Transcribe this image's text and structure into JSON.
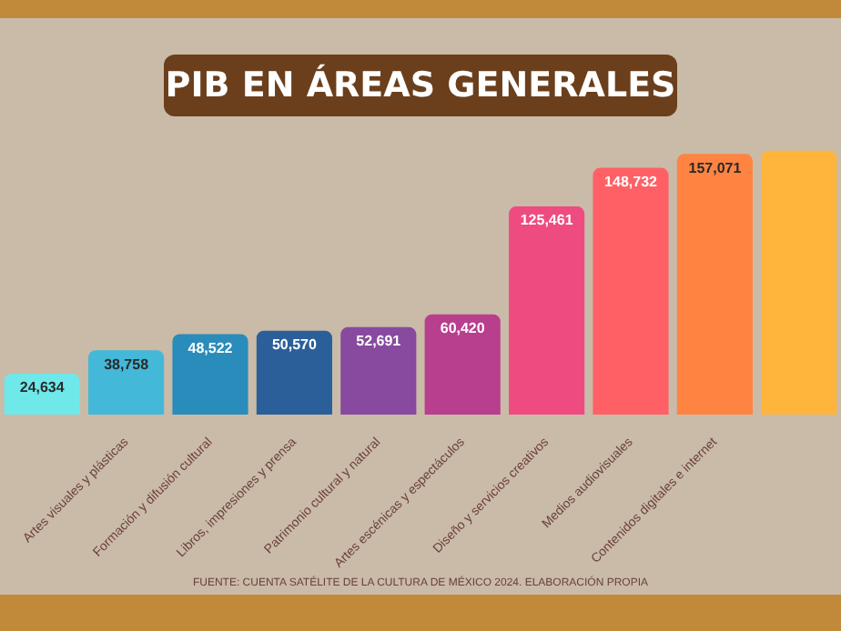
{
  "chart_data": {
    "type": "bar",
    "title": "PIB EN ÁREAS GENERALES",
    "categories": [
      null,
      "Artes visuales y plásticas",
      "Formación y difusión cultural",
      "Libros, impresiones y prensa",
      "Patrimonio cultural y natural",
      "Artes escénicas y espectáculos",
      "Diseño y servicios creativos",
      "Medios audiovisuales",
      "Contenidos digitales e internet",
      null
    ],
    "values": [
      24634,
      38758,
      48522,
      50570,
      52691,
      60420,
      125461,
      148732,
      157071,
      159000
    ],
    "value_labels": [
      "24,634",
      "38,758",
      "48,522",
      "50,570",
      "52,691",
      "60,420",
      "125,461",
      "148,732",
      "157,071",
      null
    ],
    "colors": [
      "#6fe8ea",
      "#44b8d8",
      "#2a8cba",
      "#2b5f9a",
      "#884a9e",
      "#b83e8e",
      "#ee4c80",
      "#ff6066",
      "#ff8442",
      "#ffb43c"
    ],
    "tick_labels": "x",
    "annotations": [
      "FUENTE: CUENTA SATÉLITE DE LA CULTURA DE MÉXICO 2024. ELABORACIÓN PROPIA"
    ]
  }
}
